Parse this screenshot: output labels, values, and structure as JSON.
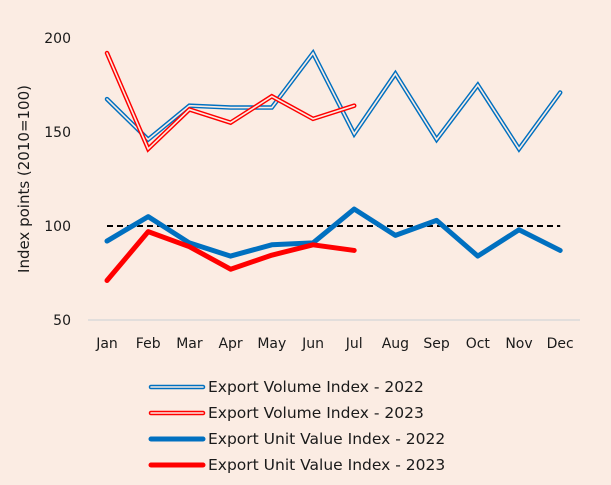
{
  "chart_data": {
    "type": "line",
    "title": "",
    "xlabel": "",
    "ylabel": "Index points (2010=100)",
    "ylim": [
      50,
      200
    ],
    "yticks": [
      50,
      100,
      150,
      200
    ],
    "categories": [
      "Jan",
      "Feb",
      "Mar",
      "Apr",
      "May",
      "Jun",
      "Jul",
      "Aug",
      "Sep",
      "Oct",
      "Nov",
      "Dec"
    ],
    "reference_line": {
      "value": 100,
      "style": "dashed",
      "color": "#000000"
    },
    "legend_position": "bottom",
    "series": [
      {
        "name": "Export Volume Index - 2022",
        "color": "#0070C0",
        "style": "double",
        "values": [
          167.5,
          146,
          164,
          163,
          163,
          192,
          149,
          181,
          146,
          175,
          141,
          171
        ]
      },
      {
        "name": "Export Volume Index - 2023",
        "color": "#FF0000",
        "style": "double",
        "values": [
          192,
          141,
          162,
          155,
          169,
          157,
          164,
          null,
          null,
          null,
          null,
          null
        ]
      },
      {
        "name": "Export Unit Value Index - 2022",
        "color": "#0070C0",
        "style": "thick",
        "values": [
          92,
          105,
          91,
          84,
          90,
          91,
          109,
          95,
          103,
          84,
          98,
          87
        ]
      },
      {
        "name": "Export Unit Value Index - 2023",
        "color": "#FF0000",
        "style": "thick",
        "values": [
          71,
          97,
          89,
          77,
          84.5,
          90,
          87,
          null,
          null,
          null,
          null,
          null
        ]
      }
    ]
  }
}
